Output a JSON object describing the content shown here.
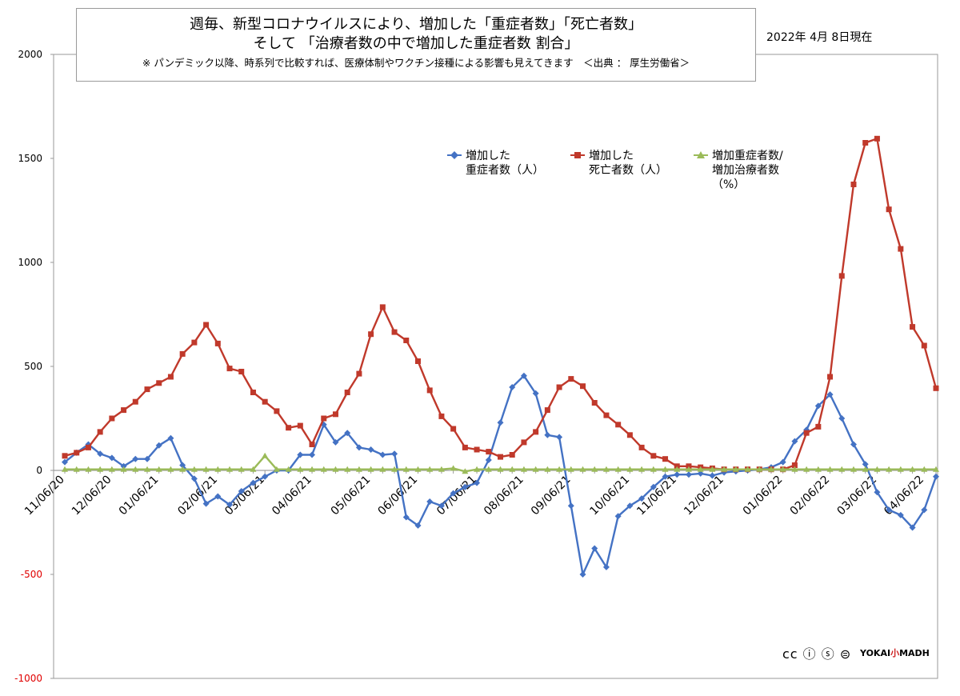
{
  "title": {
    "line1": "週毎、新型コロナウイルスにより、増加した「重症者数」「死亡者数」",
    "line2": "そして 「治療者数の中で増加した重症者数 割合」",
    "note": "※ パンデミック以降、時系列で比較すれば、医療体制やワクチン接種による影響も見えてきます　＜出典 ： 厚生労働省＞"
  },
  "as_of": "2022年 4月 8日現在",
  "legend": [
    {
      "line1": "増加した",
      "line2": "重症者数（人）",
      "line3": ""
    },
    {
      "line1": "増加した",
      "line2": "死亡者数（人）",
      "line3": ""
    },
    {
      "line1": "増加重症者数/",
      "line2": "増加治療者数",
      "line3": "（%）"
    }
  ],
  "watermark": {
    "cc": "cc ⓘ ⓢ ⊜",
    "brand_a": "YOKAI",
    "brand_b": "小",
    "brand_c": "MADH"
  },
  "colors": {
    "series1": "#4472c4",
    "series2": "#c0392b",
    "series3": "#9bbb59",
    "negative_tick": "#e00000"
  },
  "chart_data": {
    "type": "line",
    "title": "週毎、新型コロナウイルスにより、増加した「重症者数」「死亡者数」そして 「治療者数の中で増加した重症者数 割合」",
    "xlabel": "",
    "ylabel": "",
    "ylim": [
      -1000,
      2000
    ],
    "yticks": [
      2000,
      1500,
      1000,
      500,
      0,
      -500,
      -1000
    ],
    "grid": false,
    "legend_position": "top-right",
    "x_start": "11/06/20",
    "x_interval_days": 7,
    "x_tick_labels": [
      "11/06/20",
      "12/06/20",
      "01/06/21",
      "02/06/21",
      "03/06/21",
      "04/06/21",
      "05/06/21",
      "06/06/21",
      "07/06/21",
      "08/06/21",
      "09/06/21",
      "10/06/21",
      "11/06/21",
      "12/06/21",
      "01/06/22",
      "02/06/22",
      "03/06/22",
      "04/06/22"
    ],
    "x_tick_week_index": [
      0,
      4,
      8,
      13,
      17,
      21,
      26,
      30,
      35,
      39,
      43,
      48,
      52,
      56,
      61,
      65,
      69,
      73
    ],
    "series": [
      {
        "name": "増加した重症者数（人）",
        "color": "#4472c4",
        "marker": "diamond",
        "values": [
          40,
          85,
          125,
          80,
          60,
          20,
          55,
          55,
          120,
          155,
          25,
          -40,
          -160,
          -125,
          -165,
          -100,
          -60,
          -30,
          0,
          0,
          75,
          75,
          220,
          135,
          180,
          110,
          100,
          75,
          80,
          -225,
          -265,
          -150,
          -170,
          -110,
          -80,
          -60,
          50,
          230,
          400,
          455,
          370,
          170,
          160,
          -170,
          -500,
          -375,
          -465,
          -220,
          -170,
          -135,
          -80,
          -30,
          -20,
          -20,
          -15,
          -25,
          -10,
          -5,
          0,
          5,
          15,
          40,
          140,
          195,
          310,
          365,
          250,
          125,
          30,
          -105,
          -190,
          -215,
          -275,
          -190,
          -30
        ]
      },
      {
        "name": "増加した死亡者数（人）",
        "color": "#c0392b",
        "marker": "square",
        "values": [
          70,
          85,
          110,
          185,
          250,
          290,
          330,
          390,
          420,
          450,
          560,
          615,
          700,
          610,
          490,
          475,
          375,
          330,
          285,
          205,
          215,
          125,
          250,
          270,
          375,
          465,
          655,
          785,
          665,
          625,
          525,
          385,
          260,
          200,
          110,
          100,
          90,
          65,
          75,
          135,
          185,
          290,
          400,
          440,
          405,
          325,
          265,
          220,
          170,
          110,
          70,
          55,
          20,
          20,
          15,
          10,
          5,
          5,
          5,
          5,
          5,
          5,
          25,
          180,
          210,
          450,
          935,
          1375,
          1575,
          1595,
          1255,
          1065,
          690,
          600,
          395
        ]
      },
      {
        "name": "増加重症者数/増加治療者数（%）",
        "color": "#9bbb59",
        "marker": "triangle",
        "values": [
          5,
          5,
          5,
          5,
          5,
          5,
          5,
          5,
          5,
          5,
          5,
          5,
          5,
          5,
          5,
          5,
          5,
          70,
          5,
          5,
          5,
          5,
          5,
          5,
          5,
          5,
          5,
          5,
          5,
          5,
          5,
          5,
          5,
          10,
          -5,
          5,
          5,
          5,
          5,
          5,
          5,
          5,
          5,
          5,
          5,
          5,
          5,
          5,
          5,
          5,
          5,
          5,
          5,
          5,
          5,
          5,
          5,
          5,
          5,
          5,
          5,
          5,
          5,
          5,
          5,
          5,
          5,
          5,
          5,
          5,
          5,
          5,
          5,
          5,
          5
        ]
      }
    ]
  }
}
